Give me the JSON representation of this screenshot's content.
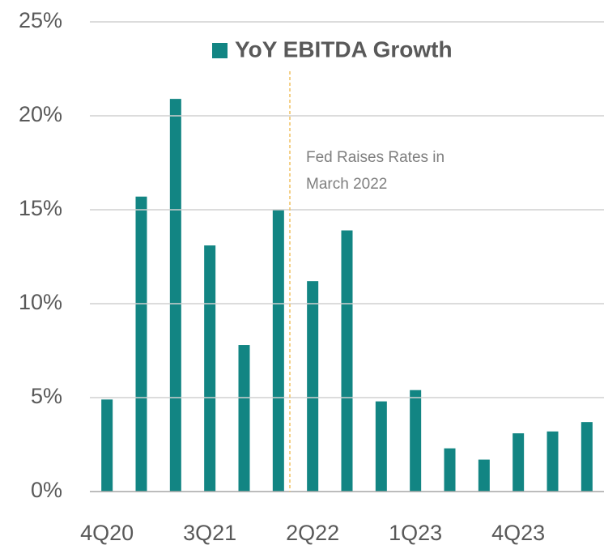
{
  "chart_data": {
    "type": "bar",
    "categories": [
      "4Q20",
      null,
      null,
      "3Q21",
      null,
      null,
      "2Q22",
      null,
      null,
      "1Q23",
      null,
      null,
      "4Q23",
      null,
      null
    ],
    "series": [
      {
        "name": "YoY EBITDA Growth",
        "color": "#128583",
        "values": [
          4.9,
          15.7,
          20.9,
          13.1,
          7.8,
          15.0,
          11.2,
          13.9,
          4.8,
          5.4,
          2.3,
          1.7,
          3.1,
          3.2,
          3.7
        ]
      }
    ],
    "ylim": [
      0,
      25
    ],
    "yticks": [
      {
        "value": 0,
        "label": "0%"
      },
      {
        "value": 5,
        "label": "5%"
      },
      {
        "value": 10,
        "label": "10%"
      },
      {
        "value": 15,
        "label": "15%"
      },
      {
        "value": 20,
        "label": "20%"
      },
      {
        "value": 25,
        "label": "25%"
      }
    ],
    "grid": true,
    "annotation": [
      "Fed Raises Rates in",
      "March 2022"
    ]
  }
}
